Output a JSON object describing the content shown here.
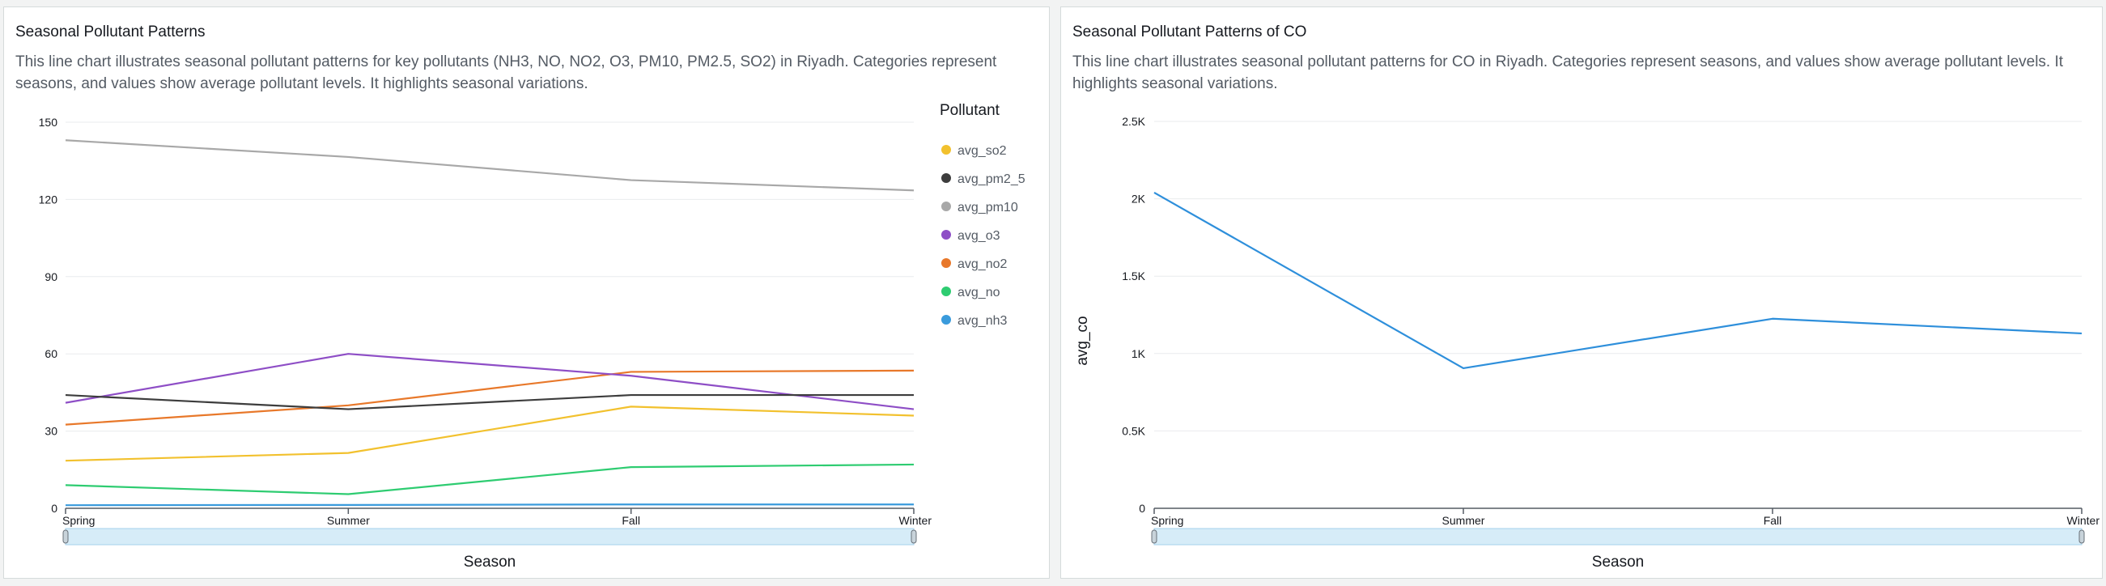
{
  "chart_data": [
    {
      "type": "line",
      "title": "Seasonal Pollutant Patterns",
      "subtitle": "This line chart illustrates seasonal pollutant patterns for key pollutants (NH3, NO, NO2, O3, PM10, PM2.5, SO2) in Riyadh. Categories represent seasons, and values show average pollutant levels. It highlights seasonal variations.",
      "xlabel": "Season",
      "ylabel": "",
      "categories": [
        "Spring",
        "Summer",
        "Fall",
        "Winter"
      ],
      "ylim": [
        0,
        150
      ],
      "yticks": [
        0,
        30,
        60,
        90,
        120,
        150
      ],
      "ytick_labels": [
        "0",
        "30",
        "60",
        "90",
        "120",
        "150"
      ],
      "grid": true,
      "legend": {
        "title": "Pollutant",
        "placement": "right"
      },
      "series": [
        {
          "name": "avg_so2",
          "color": "#f2c12e",
          "values": [
            18.5,
            21.5,
            39.5,
            36
          ]
        },
        {
          "name": "avg_pm2_5",
          "color": "#3d3d3d",
          "values": [
            44,
            38.5,
            44,
            44
          ]
        },
        {
          "name": "avg_pm10",
          "color": "#a8a8a8",
          "values": [
            143,
            136.5,
            127.5,
            123.5
          ]
        },
        {
          "name": "avg_o3",
          "color": "#8e4ec6",
          "values": [
            41,
            60,
            51.5,
            38.5
          ]
        },
        {
          "name": "avg_no2",
          "color": "#e8782a",
          "values": [
            32.5,
            40,
            53,
            53.5
          ]
        },
        {
          "name": "avg_no",
          "color": "#2ecc71",
          "values": [
            9,
            5.5,
            16,
            17
          ]
        },
        {
          "name": "avg_nh3",
          "color": "#3a9bdc",
          "values": [
            1.2,
            1.3,
            1.5,
            1.5
          ]
        }
      ]
    },
    {
      "type": "line",
      "title": "Seasonal Pollutant Patterns of CO",
      "subtitle": "This line chart illustrates seasonal pollutant patterns for CO in Riyadh. Categories represent seasons, and values show average pollutant levels. It highlights seasonal variations.",
      "xlabel": "Season",
      "ylabel": "avg_co",
      "categories": [
        "Spring",
        "Summer",
        "Fall",
        "Winter"
      ],
      "ylim": [
        0,
        2500
      ],
      "yticks": [
        0,
        500,
        1000,
        1500,
        2000,
        2500
      ],
      "ytick_labels": [
        "0",
        "0.5K",
        "1K",
        "1.5K",
        "2K",
        "2.5K"
      ],
      "grid": true,
      "series": [
        {
          "name": "avg_co",
          "color": "#2e8fdb",
          "values": [
            2040,
            905,
            1225,
            1130
          ]
        }
      ]
    }
  ]
}
